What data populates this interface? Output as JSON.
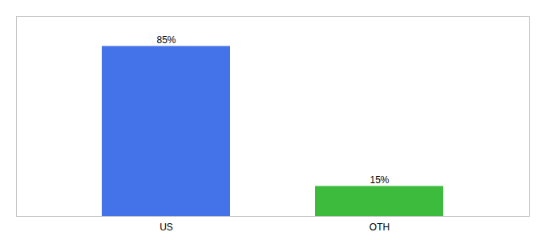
{
  "chart_data": {
    "type": "bar",
    "categories": [
      "US",
      "OTH"
    ],
    "values": [
      85,
      15
    ],
    "value_labels": [
      "85%",
      "15%"
    ],
    "colors": [
      "#4472e8",
      "#3dbb3d"
    ],
    "ylim": [
      0,
      100
    ],
    "data_labels": true,
    "tick_labels": "x"
  }
}
